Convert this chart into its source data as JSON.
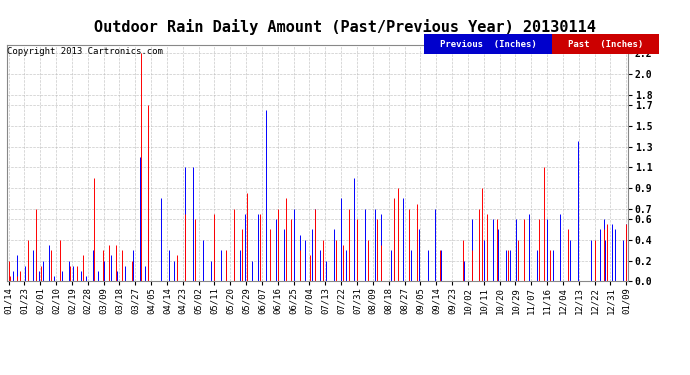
{
  "title": "Outdoor Rain Daily Amount (Past/Previous Year) 20130114",
  "copyright": "Copyright 2013 Cartronics.com",
  "legend_prev": "Previous  (Inches)",
  "legend_past": "Past  (Inches)",
  "legend_prev_bg": "#0000CC",
  "legend_past_bg": "#CC0000",
  "yticks": [
    0.0,
    0.2,
    0.4,
    0.6,
    0.7,
    0.9,
    1.1,
    1.3,
    1.5,
    1.7,
    1.8,
    2.0,
    2.2
  ],
  "ylim": [
    0.0,
    2.28
  ],
  "background_color": "#FFFFFF",
  "plot_bg_color": "#FFFFFF",
  "grid_color": "#BBBBBB",
  "title_fontsize": 11,
  "axis_fontsize": 6.5,
  "xtick_labels": [
    "01/14",
    "01/23",
    "02/01",
    "02/10",
    "02/19",
    "02/28",
    "03/09",
    "03/18",
    "03/27",
    "04/05",
    "04/14",
    "04/23",
    "05/02",
    "05/11",
    "05/20",
    "05/29",
    "06/07",
    "06/16",
    "06/25",
    "07/04",
    "07/13",
    "07/22",
    "07/31",
    "08/09",
    "08/18",
    "08/27",
    "09/05",
    "09/14",
    "09/23",
    "10/02",
    "10/11",
    "10/20",
    "10/29",
    "11/07",
    "11/16",
    "12/04",
    "12/13",
    "12/22",
    "12/31",
    "01/09"
  ],
  "prev_rain": [
    0.05,
    0.0,
    0.0,
    0.1,
    0.0,
    0.25,
    0.0,
    0.0,
    0.0,
    0.0,
    0.15,
    0.0,
    0.0,
    0.0,
    0.0,
    0.3,
    0.0,
    0.4,
    0.0,
    0.1,
    0.0,
    0.2,
    0.0,
    0.0,
    0.0,
    0.35,
    0.0,
    0.0,
    0.05,
    0.0,
    0.0,
    0.0,
    0.0,
    0.1,
    0.0,
    0.0,
    0.0,
    0.2,
    0.0,
    0.0,
    0.15,
    0.0,
    0.0,
    0.0,
    0.0,
    0.1,
    0.0,
    0.0,
    0.05,
    0.0,
    0.0,
    0.0,
    0.3,
    0.0,
    0.0,
    0.1,
    0.0,
    0.0,
    0.0,
    0.2,
    0.0,
    0.0,
    0.0,
    0.25,
    0.0,
    0.0,
    0.0,
    0.1,
    0.0,
    0.0,
    0.0,
    0.0,
    0.15,
    0.0,
    0.0,
    0.0,
    0.0,
    0.3,
    0.0,
    0.0,
    0.0,
    1.2,
    0.0,
    0.0,
    0.15,
    0.0,
    0.5,
    0.0,
    0.0,
    0.0,
    0.0,
    0.0,
    0.0,
    0.0,
    0.8,
    0.0,
    0.0,
    0.0,
    0.0,
    0.3,
    0.0,
    0.0,
    0.2,
    0.0,
    0.0,
    0.0,
    0.0,
    0.0,
    0.0,
    1.1,
    0.0,
    0.0,
    0.0,
    0.0,
    1.1,
    0.0,
    0.0,
    0.0,
    0.0,
    0.0,
    0.4,
    0.0,
    0.0,
    0.0,
    0.0,
    0.2,
    0.0,
    0.5,
    0.0,
    0.0,
    0.0,
    0.3,
    0.0,
    0.0,
    0.2,
    0.0,
    0.0,
    0.0,
    0.0,
    0.6,
    0.0,
    0.0,
    0.0,
    0.3,
    0.0,
    0.0,
    0.65,
    0.0,
    0.0,
    0.0,
    0.2,
    0.0,
    0.0,
    0.0,
    0.65,
    0.0,
    0.0,
    0.0,
    0.0,
    1.65,
    0.0,
    0.0,
    0.0,
    0.0,
    0.0,
    0.6,
    0.0,
    0.0,
    0.0,
    0.0,
    0.5,
    0.0,
    0.0,
    0.0,
    0.0,
    0.0,
    0.7,
    0.0,
    0.0,
    0.0,
    0.45,
    0.0,
    0.0,
    0.4,
    0.0,
    0.0,
    0.0,
    0.5,
    0.0,
    0.7,
    0.0,
    0.0,
    0.3,
    0.0,
    0.0,
    0.0,
    0.2,
    0.0,
    0.0,
    0.0,
    0.0,
    0.5,
    0.0,
    0.0,
    0.0,
    0.8,
    0.0,
    0.0,
    0.3,
    0.0,
    0.0,
    0.0,
    0.0,
    1.0,
    0.0,
    0.0,
    0.0,
    0.0,
    0.0,
    0.0,
    0.7,
    0.0,
    0.0,
    0.0,
    0.0,
    0.0,
    0.7,
    0.0,
    0.0,
    0.0,
    0.65,
    0.0,
    0.0,
    0.0,
    0.0,
    0.0,
    0.3,
    0.0,
    0.7,
    0.0,
    0.0,
    0.0,
    0.0,
    0.8,
    0.0,
    0.0,
    0.0,
    0.0,
    0.3,
    0.0,
    0.0,
    0.0,
    0.0,
    0.5,
    0.0,
    0.0,
    0.0,
    0.0,
    0.0,
    0.3,
    0.0,
    0.0,
    0.0,
    0.7,
    0.0,
    0.0,
    0.0,
    0.3,
    0.0,
    0.0,
    0.0,
    0.0,
    0.0,
    0.0,
    0.0,
    0.0,
    0.0,
    0.0,
    0.0,
    0.0,
    0.0,
    0.2,
    0.0,
    0.0,
    0.0,
    0.0,
    0.6,
    0.0,
    0.0,
    0.0,
    0.4,
    0.0,
    0.0,
    0.4,
    0.0,
    0.0,
    0.0,
    0.0,
    0.0,
    0.6,
    0.0,
    0.0,
    0.5,
    0.0,
    0.0,
    0.0,
    0.0,
    0.3,
    0.0,
    0.3,
    0.0,
    0.0,
    0.0,
    0.6,
    0.0,
    0.0,
    0.0,
    0.0,
    0.0,
    0.0,
    0.0,
    0.65,
    0.0,
    0.0,
    0.0,
    0.0,
    0.3,
    0.0,
    0.0,
    0.0,
    0.0,
    0.0,
    0.6,
    0.0,
    0.0,
    0.0,
    0.3,
    0.0,
    0.0,
    0.0,
    0.65,
    0.0,
    0.0,
    0.0,
    0.0,
    0.0,
    0.4,
    0.0,
    0.0,
    0.0,
    0.0,
    1.35,
    0.0,
    0.0,
    0.0,
    0.0,
    0.0,
    0.0,
    0.0,
    0.4,
    0.0,
    0.0,
    0.0,
    0.0,
    0.0,
    0.5,
    0.0,
    0.6,
    0.4,
    0.0,
    0.0,
    0.0,
    0.55,
    0.0,
    0.5,
    0.0,
    0.0,
    0.0,
    0.0,
    0.4,
    0.0,
    0.55
  ],
  "past_rain": [
    0.2,
    0.05,
    0.0,
    0.0,
    0.0,
    0.05,
    0.0,
    0.1,
    0.0,
    0.0,
    0.0,
    0.0,
    0.4,
    0.0,
    0.0,
    0.0,
    0.0,
    0.7,
    0.0,
    0.0,
    0.15,
    0.0,
    0.0,
    0.0,
    0.0,
    0.0,
    0.3,
    0.0,
    0.0,
    0.0,
    0.0,
    0.0,
    0.4,
    0.0,
    0.0,
    0.0,
    0.0,
    0.0,
    0.15,
    0.0,
    0.0,
    0.0,
    0.15,
    0.0,
    0.0,
    0.0,
    0.25,
    0.0,
    0.0,
    0.0,
    0.0,
    0.0,
    0.0,
    1.0,
    0.0,
    0.0,
    0.0,
    0.0,
    0.3,
    0.0,
    0.0,
    0.0,
    0.35,
    0.0,
    0.0,
    0.0,
    0.35,
    0.0,
    0.0,
    0.0,
    0.3,
    0.0,
    0.0,
    0.0,
    0.0,
    0.0,
    0.2,
    0.0,
    0.0,
    0.0,
    0.0,
    0.0,
    2.2,
    0.0,
    0.0,
    0.0,
    1.7,
    0.0,
    0.0,
    0.0,
    0.0,
    0.0,
    0.0,
    0.0,
    0.0,
    0.0,
    0.0,
    0.0,
    0.0,
    0.0,
    0.0,
    0.0,
    0.0,
    0.0,
    0.25,
    0.0,
    0.0,
    0.0,
    0.0,
    0.65,
    0.0,
    0.0,
    0.0,
    0.0,
    0.0,
    0.6,
    0.0,
    0.0,
    0.0,
    0.0,
    0.0,
    0.0,
    0.0,
    0.0,
    0.0,
    0.0,
    0.0,
    0.65,
    0.0,
    0.0,
    0.0,
    0.0,
    0.0,
    0.0,
    0.3,
    0.0,
    0.0,
    0.0,
    0.0,
    0.7,
    0.0,
    0.0,
    0.0,
    0.0,
    0.5,
    0.0,
    0.0,
    0.85,
    0.0,
    0.0,
    0.0,
    0.0,
    0.0,
    0.0,
    0.0,
    0.65,
    0.0,
    0.0,
    0.0,
    0.0,
    0.0,
    0.5,
    0.0,
    0.0,
    0.0,
    0.0,
    0.7,
    0.0,
    0.0,
    0.0,
    0.0,
    0.8,
    0.0,
    0.0,
    0.6,
    0.0,
    0.0,
    0.0,
    0.0,
    0.0,
    0.3,
    0.0,
    0.0,
    0.0,
    0.0,
    0.0,
    0.25,
    0.0,
    0.0,
    0.7,
    0.0,
    0.0,
    0.0,
    0.0,
    0.4,
    0.0,
    0.0,
    0.0,
    0.0,
    0.0,
    0.0,
    0.0,
    0.4,
    0.0,
    0.0,
    0.0,
    0.35,
    0.0,
    0.0,
    0.0,
    0.7,
    0.0,
    0.0,
    0.0,
    0.0,
    0.6,
    0.0,
    0.0,
    0.0,
    0.0,
    0.0,
    0.0,
    0.4,
    0.0,
    0.0,
    0.0,
    0.0,
    0.6,
    0.0,
    0.0,
    0.35,
    0.0,
    0.0,
    0.0,
    0.0,
    0.0,
    0.0,
    0.0,
    0.8,
    0.0,
    0.9,
    0.0,
    0.0,
    0.0,
    0.0,
    0.0,
    0.0,
    0.7,
    0.0,
    0.0,
    0.0,
    0.0,
    0.75,
    0.0,
    0.0,
    0.0,
    0.0,
    0.0,
    0.0,
    0.0,
    0.0,
    0.0,
    0.0,
    0.0,
    0.0,
    0.0,
    0.3,
    0.0,
    0.0,
    0.0,
    0.0,
    0.0,
    0.0,
    0.0,
    0.0,
    0.0,
    0.0,
    0.0,
    0.0,
    0.0,
    0.4,
    0.0,
    0.0,
    0.0,
    0.0,
    0.0,
    0.3,
    0.0,
    0.0,
    0.0,
    0.7,
    0.0,
    0.9,
    0.0,
    0.0,
    0.65,
    0.0,
    0.0,
    0.0,
    0.0,
    0.0,
    0.6,
    0.0,
    0.0,
    0.0,
    0.0,
    0.0,
    0.0,
    0.3,
    0.0,
    0.0,
    0.0,
    0.0,
    0.0,
    0.4,
    0.0,
    0.0,
    0.0,
    0.6,
    0.0,
    0.0,
    0.0,
    0.0,
    0.0,
    0.0,
    0.0,
    0.0,
    0.6,
    0.0,
    0.0,
    1.1,
    0.0,
    0.0,
    0.0,
    0.3,
    0.0,
    0.0,
    0.0,
    0.0,
    0.0,
    0.0,
    0.0,
    0.0,
    0.0,
    0.0,
    0.5,
    0.0,
    0.0,
    0.0,
    0.0,
    0.0,
    0.0,
    0.0,
    0.0,
    0.0,
    0.0,
    0.0,
    0.0,
    0.0,
    0.0,
    0.0,
    0.0,
    0.4,
    0.0,
    0.0,
    0.0,
    0.0,
    0.5,
    0.0,
    0.55,
    0.0,
    0.0,
    0.0,
    0.0,
    0.0,
    0.0,
    0.0,
    0.0,
    0.0,
    0.0,
    0.0,
    0.55
  ]
}
